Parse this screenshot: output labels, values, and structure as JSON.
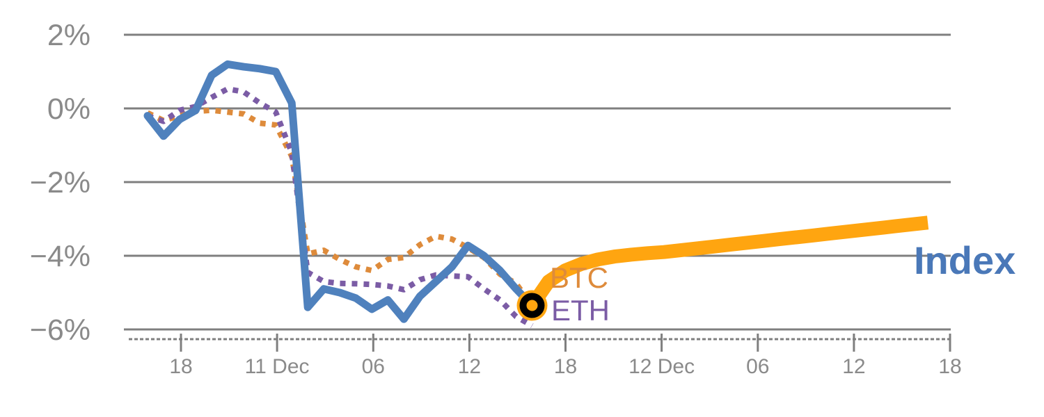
{
  "chart_data": {
    "type": "line",
    "title": "",
    "x_axis": {
      "tick_labels": [
        "18",
        "11 Dec",
        "06",
        "12",
        "18",
        "12 Dec",
        "06",
        "12",
        "18"
      ],
      "minor_ticks": true,
      "tick_interval_hours": 6
    },
    "y_axis": {
      "unit": "%",
      "tick_labels": [
        "2%",
        "0%",
        "−2%",
        "−4%",
        "−6%"
      ],
      "tick_values": [
        2,
        0,
        -2,
        -4,
        -6
      ]
    },
    "colors": {
      "grid": "#7f7f7f",
      "axis_text": "#8a8a8a",
      "background": "#ffffff"
    },
    "series": [
      {
        "name": "Index",
        "label": "Index",
        "color": "#4f81bd",
        "label_color": "#4a78b8",
        "style": "solid",
        "segment": "history",
        "values": [
          -0.2,
          -0.75,
          -0.3,
          -0.05,
          0.9,
          1.2,
          1.13,
          1.08,
          1.0,
          0.15,
          -5.4,
          -4.9,
          -5.0,
          -5.15,
          -5.45,
          -5.2,
          -5.72,
          -5.1,
          -4.7,
          -4.3,
          -3.72,
          -4.0,
          -4.4,
          -4.9,
          -5.35
        ]
      },
      {
        "name": "BTC",
        "label": "BTC",
        "color": "#de8b3b",
        "label_color": "#de8b3b",
        "style": "dotted",
        "segment": "history",
        "values": [
          -0.12,
          -0.33,
          -0.2,
          -0.08,
          -0.05,
          -0.1,
          -0.15,
          -0.4,
          -0.45,
          -1.3,
          -3.95,
          -3.85,
          -4.1,
          -4.3,
          -4.4,
          -4.1,
          -4.05,
          -3.7,
          -3.47,
          -3.55,
          -3.78,
          -4.05,
          -4.5,
          -4.75,
          -5.35
        ]
      },
      {
        "name": "ETH",
        "label": "ETH",
        "color": "#7b5ca5",
        "label_color": "#7b5ca5",
        "style": "dotted",
        "segment": "history",
        "values": [
          -0.2,
          -0.35,
          -0.05,
          0.05,
          0.3,
          0.53,
          0.45,
          0.15,
          -0.1,
          -1.2,
          -4.45,
          -4.7,
          -4.75,
          -4.76,
          -4.78,
          -4.82,
          -4.92,
          -4.65,
          -4.52,
          -4.55,
          -4.57,
          -4.9,
          -5.2,
          -5.65,
          -5.9
        ]
      },
      {
        "name": "Index forecast",
        "label": "",
        "color": "#ffa510",
        "style": "solid",
        "segment": "forecast",
        "values": [
          -5.35,
          -4.7,
          -4.4,
          -4.22,
          -4.1,
          -4.02,
          -3.97,
          -3.93,
          -3.9,
          -3.85,
          -3.8,
          -3.75,
          -3.7,
          -3.65,
          -3.6,
          -3.55,
          -3.5,
          -3.45,
          -3.4,
          -3.35,
          -3.3,
          -3.25,
          -3.2,
          -3.15,
          -3.1
        ]
      }
    ],
    "marker": {
      "shape": "ring",
      "fill": "#ffa510",
      "ring_color": "#000000",
      "value": -5.35,
      "position": "junction of history and forecast"
    }
  }
}
